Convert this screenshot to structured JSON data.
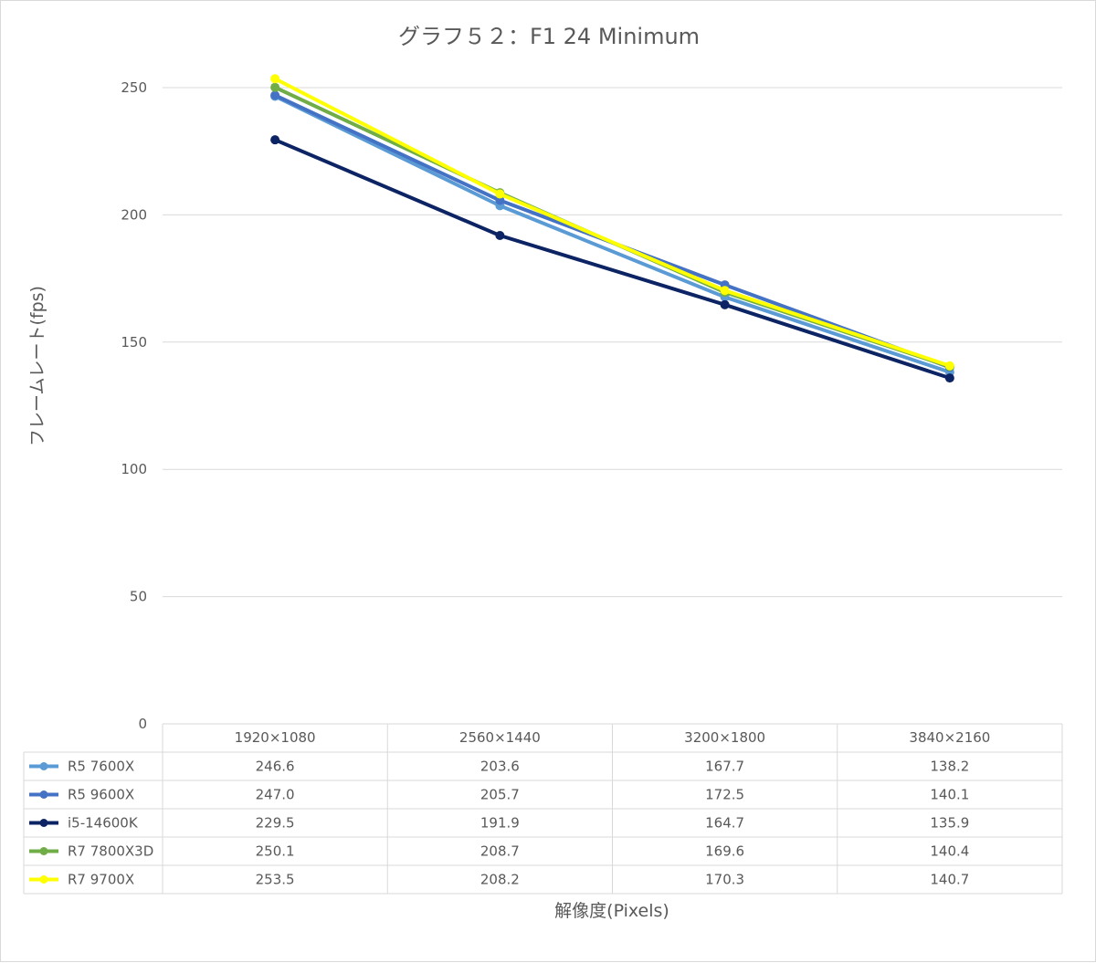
{
  "chart_data": {
    "type": "line",
    "title": "グラフ５２：F1 24 Minimum",
    "xlabel": "解像度(Pixels)",
    "ylabel": "フレームレート(fps)",
    "ylim": [
      0,
      250
    ],
    "yticks": [
      "0",
      "50",
      "100",
      "150",
      "200",
      "250"
    ],
    "grid": true,
    "legend": "data-table-left",
    "categories": [
      "1920×1080",
      "2560×1440",
      "3200×1800",
      "3840×2160"
    ],
    "series": [
      {
        "name": "R5 7600X",
        "color": "#5b9bd5",
        "values": [
          246.6,
          203.6,
          167.7,
          138.2
        ],
        "labels": [
          "246.6",
          "203.6",
          "167.7",
          "138.2"
        ]
      },
      {
        "name": "R5 9600X",
        "color": "#4472c4",
        "values": [
          247.0,
          205.7,
          172.5,
          140.1
        ],
        "labels": [
          "247.0",
          "205.7",
          "172.5",
          "140.1"
        ]
      },
      {
        "name": "i5-14600K",
        "color": "#0d2464",
        "values": [
          229.5,
          191.9,
          164.7,
          135.9
        ],
        "labels": [
          "229.5",
          "191.9",
          "164.7",
          "135.9"
        ]
      },
      {
        "name": "R7 7800X3D",
        "color": "#70ad47",
        "values": [
          250.1,
          208.7,
          169.6,
          140.4
        ],
        "labels": [
          "250.1",
          "208.7",
          "169.6",
          "140.4"
        ]
      },
      {
        "name": "R7 9700X",
        "color": "#ffff00",
        "values": [
          253.5,
          208.2,
          170.3,
          140.7
        ],
        "labels": [
          "253.5",
          "208.2",
          "170.3",
          "140.7"
        ]
      }
    ]
  }
}
